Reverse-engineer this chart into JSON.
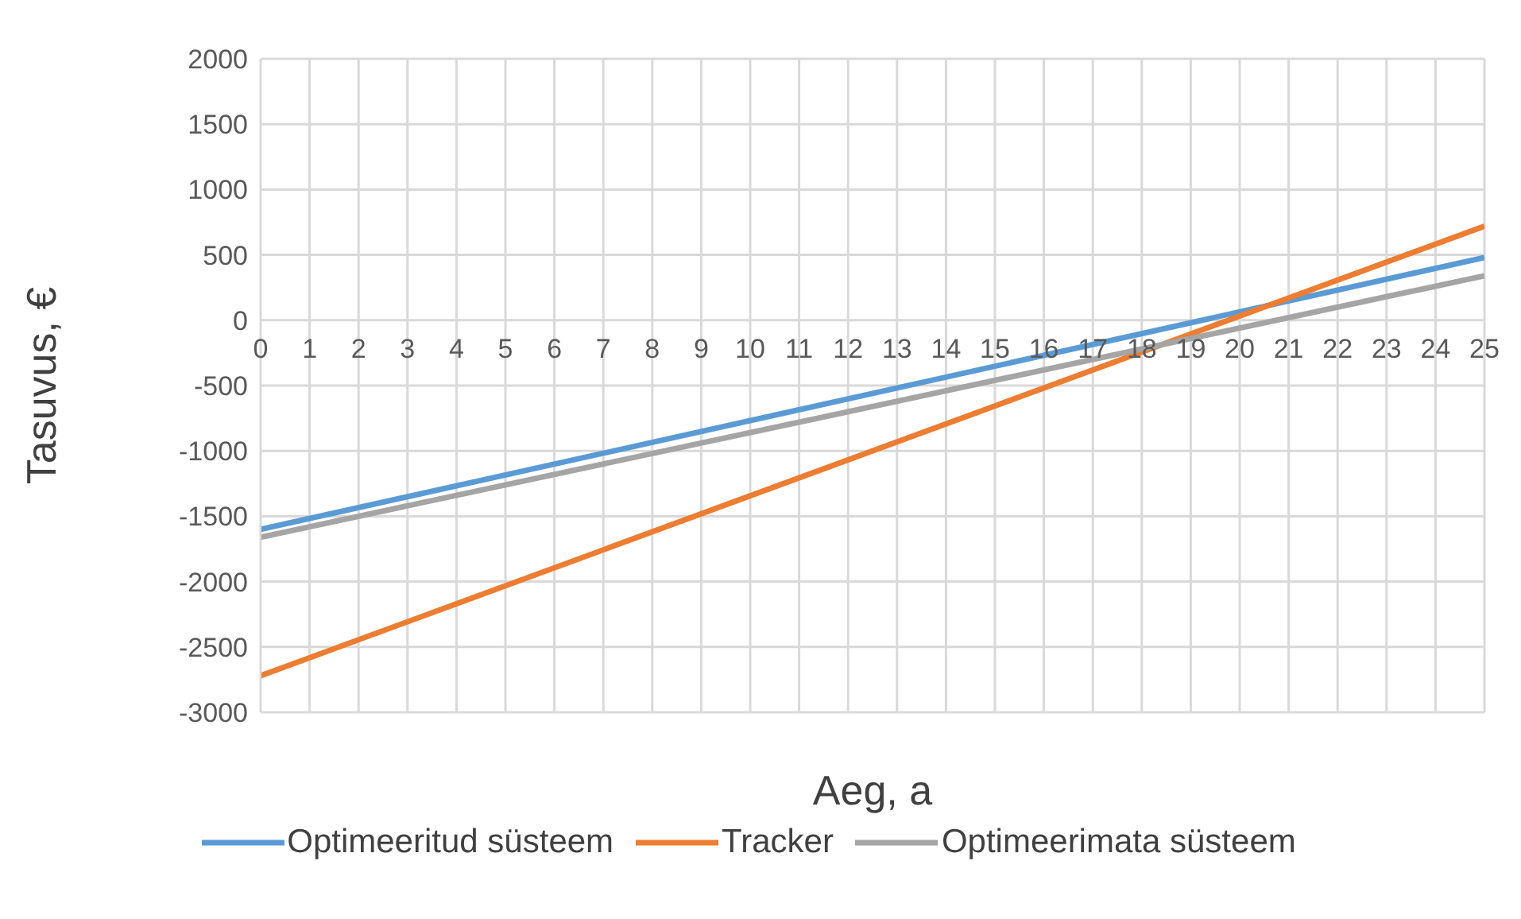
{
  "chart_data": {
    "type": "line",
    "xlabel": "Aeg, a",
    "ylabel": "Tasuvus, €",
    "x": [
      0,
      25
    ],
    "xlim": [
      0,
      25
    ],
    "xticks": [
      0,
      1,
      2,
      3,
      4,
      5,
      6,
      7,
      8,
      9,
      10,
      11,
      12,
      13,
      14,
      15,
      16,
      17,
      18,
      19,
      20,
      21,
      22,
      23,
      24,
      25
    ],
    "ylim": [
      -3000,
      2000
    ],
    "yticks": [
      -3000,
      -2500,
      -2000,
      -1500,
      -1000,
      -500,
      0,
      500,
      1000,
      1500,
      2000
    ],
    "grid": true,
    "legend": "bottom",
    "marker": "none",
    "line_style": "solid",
    "series": [
      {
        "name": "Optimeeritud süsteem",
        "color": "#5b9bd5",
        "values": [
          -1600,
          480
        ]
      },
      {
        "name": "Tracker",
        "color": "#ed7d31",
        "values": [
          -2720,
          720
        ]
      },
      {
        "name": "Optimeerimata süsteem",
        "color": "#a5a5a5",
        "values": [
          -1660,
          340
        ]
      }
    ]
  }
}
